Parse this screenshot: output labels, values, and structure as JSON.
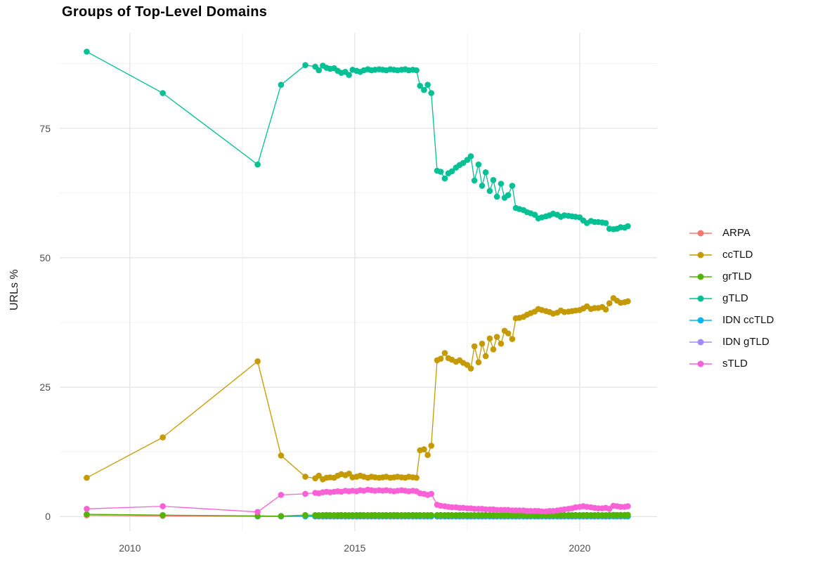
{
  "chart_data": {
    "type": "line",
    "title": "Groups of Top-Level Domains",
    "xlabel": "",
    "ylabel": "URLs %",
    "legend_position": "right",
    "grid": true,
    "background_color": "#FFFFFF",
    "grid_major_color": "#E3E3E3",
    "grid_minor_color": "#F0F0F0",
    "tick_label_color": "#4D4D4D",
    "xlim": [
      2008.44,
      2021.72
    ],
    "ylim": [
      -2.8,
      93.4
    ],
    "x_ticks": [
      2010,
      2015,
      2020
    ],
    "x_tick_labels": [
      "2010",
      "2015",
      "2020"
    ],
    "x_minor": [
      2012.5,
      2017.5
    ],
    "y_ticks": [
      0,
      25,
      50,
      75
    ],
    "y_tick_labels": [
      "0",
      "25",
      "50",
      "75"
    ],
    "y_minor": [
      12.5,
      37.5,
      62.5,
      87.5
    ],
    "x": [
      2009.04,
      2010.73,
      2012.84,
      2013.36,
      2013.9,
      2014.12,
      2014.2,
      2014.29,
      2014.37,
      2014.45,
      2014.54,
      2014.62,
      2014.7,
      2014.79,
      2014.87,
      2014.95,
      2015.04,
      2015.12,
      2015.2,
      2015.29,
      2015.37,
      2015.45,
      2015.54,
      2015.62,
      2015.7,
      2015.79,
      2015.87,
      2015.95,
      2016.04,
      2016.12,
      2016.2,
      2016.29,
      2016.37,
      2016.45,
      2016.54,
      2016.62,
      2016.7,
      2016.83,
      2016.91,
      2017.0,
      2017.08,
      2017.16,
      2017.25,
      2017.33,
      2017.41,
      2017.5,
      2017.58,
      2017.66,
      2017.75,
      2017.83,
      2017.91,
      2018.0,
      2018.08,
      2018.16,
      2018.25,
      2018.33,
      2018.41,
      2018.5,
      2018.58,
      2018.66,
      2018.75,
      2018.83,
      2018.91,
      2019.0,
      2019.08,
      2019.16,
      2019.25,
      2019.33,
      2019.41,
      2019.5,
      2019.58,
      2019.66,
      2019.75,
      2019.83,
      2019.91,
      2020.0,
      2020.08,
      2020.16,
      2020.25,
      2020.33,
      2020.41,
      2020.5,
      2020.58,
      2020.66,
      2020.75,
      2020.83,
      2020.91,
      2021.0,
      2021.07
    ],
    "series": [
      {
        "name": "ARPA",
        "color": "#F8766D",
        "values": [
          0.25,
          0.15,
          0.05,
          0.04,
          0.03,
          0.02,
          0.02,
          0.02,
          0.02,
          0.02,
          0.02,
          0.02,
          0.02,
          0.02,
          0.02,
          0.02,
          0.02,
          0.02,
          0.02,
          0.02,
          0.02,
          0.02,
          0.02,
          0.02,
          0.02,
          0.02,
          0.02,
          0.02,
          0.02,
          0.02,
          0.02,
          0.02,
          0.02,
          0.02,
          0.02,
          0.02,
          0.02,
          0.02,
          0.02,
          0.02,
          0.02,
          0.02,
          0.02,
          0.02,
          0.02,
          0.02,
          0.02,
          0.02,
          0.02,
          0.02,
          0.02,
          0.02,
          0.02,
          0.02,
          0.02,
          0.02,
          0.02,
          0.02,
          0.02,
          0.02,
          0.02,
          0.02,
          0.02,
          0.02,
          0.02,
          0.02,
          0.02,
          0.02,
          0.02,
          0.02,
          0.02,
          0.02,
          0.02,
          0.02,
          0.02,
          0.02,
          0.02,
          0.02,
          0.02,
          0.02,
          0.02,
          0.02,
          0.02,
          0.02,
          0.02,
          0.02,
          0.02,
          0.02,
          0.02
        ]
      },
      {
        "name": "ccTLD",
        "color": "#C49A00",
        "values": [
          7.5,
          15.3,
          30.0,
          11.8,
          7.7,
          7.4,
          7.9,
          7.2,
          7.5,
          7.6,
          7.5,
          7.9,
          8.2,
          8.0,
          8.3,
          7.6,
          7.7,
          7.9,
          7.7,
          7.5,
          7.7,
          7.6,
          7.5,
          7.6,
          7.7,
          7.5,
          7.6,
          7.7,
          7.6,
          7.5,
          7.7,
          7.6,
          7.5,
          12.8,
          13.0,
          11.9,
          13.7,
          30.2,
          30.5,
          31.6,
          30.6,
          30.3,
          29.9,
          30.2,
          29.7,
          29.3,
          28.6,
          32.9,
          29.8,
          33.4,
          31.0,
          34.4,
          32.3,
          34.7,
          33.4,
          35.9,
          35.4,
          34.3,
          38.3,
          38.4,
          38.6,
          39.0,
          39.3,
          39.6,
          40.1,
          39.9,
          39.7,
          39.5,
          39.2,
          39.4,
          39.8,
          39.5,
          39.6,
          39.7,
          39.8,
          39.9,
          40.2,
          40.6,
          40.1,
          40.3,
          40.3,
          40.5,
          40.0,
          41.2,
          42.2,
          41.7,
          41.3,
          41.4,
          41.6
        ]
      },
      {
        "name": "grTLD",
        "color": "#53B400",
        "values": [
          0.45,
          0.3,
          0.15,
          0.12,
          0.3,
          0.3,
          0.28,
          0.3,
          0.32,
          0.3,
          0.29,
          0.3,
          0.31,
          0.3,
          0.28,
          0.3,
          0.3,
          0.31,
          0.29,
          0.3,
          0.3,
          0.31,
          0.3,
          0.29,
          0.3,
          0.3,
          0.31,
          0.3,
          0.3,
          0.29,
          0.3,
          0.31,
          0.3,
          0.3,
          0.29,
          0.3,
          0.3,
          0.3,
          0.31,
          0.3,
          0.3,
          0.29,
          0.3,
          0.3,
          0.31,
          0.3,
          0.3,
          0.29,
          0.3,
          0.3,
          0.31,
          0.3,
          0.3,
          0.3,
          0.31,
          0.3,
          0.29,
          0.3,
          0.3,
          0.31,
          0.3,
          0.3,
          0.3,
          0.3,
          0.31,
          0.3,
          0.3,
          0.29,
          0.3,
          0.3,
          0.31,
          0.3,
          0.3,
          0.3,
          0.31,
          0.3,
          0.3,
          0.31,
          0.3,
          0.3,
          0.31,
          0.3,
          0.3,
          0.32,
          0.33,
          0.32,
          0.33,
          0.34,
          0.35
        ]
      },
      {
        "name": "gTLD",
        "color": "#00C094",
        "values": [
          89.8,
          81.8,
          68.0,
          83.4,
          87.2,
          86.9,
          86.2,
          87.1,
          86.7,
          86.5,
          86.6,
          86.1,
          85.7,
          85.9,
          85.3,
          86.3,
          86.1,
          85.9,
          86.2,
          86.4,
          86.2,
          86.3,
          86.4,
          86.3,
          86.2,
          86.4,
          86.3,
          86.2,
          86.3,
          86.4,
          86.2,
          86.3,
          86.2,
          83.2,
          82.4,
          83.4,
          81.8,
          66.8,
          66.6,
          65.3,
          66.3,
          66.7,
          67.4,
          67.9,
          68.3,
          68.9,
          69.6,
          64.9,
          68.0,
          63.9,
          66.5,
          62.9,
          65.0,
          61.8,
          64.3,
          61.6,
          62.1,
          63.9,
          59.6,
          59.4,
          59.2,
          58.8,
          58.6,
          58.3,
          57.6,
          57.8,
          58.0,
          58.2,
          58.5,
          58.3,
          57.9,
          58.2,
          58.1,
          58.0,
          57.9,
          57.8,
          57.2,
          56.7,
          57.1,
          56.9,
          56.9,
          56.8,
          56.7,
          55.6,
          55.5,
          55.6,
          55.9,
          55.8,
          56.1
        ]
      },
      {
        "name": "IDN ccTLD",
        "color": "#00B6EB",
        "values": [
          null,
          null,
          0.05,
          0.06,
          0.08,
          0.1,
          0.1,
          0.1,
          0.1,
          0.1,
          0.1,
          0.1,
          0.1,
          0.1,
          0.1,
          0.1,
          0.1,
          0.1,
          0.1,
          0.1,
          0.1,
          0.1,
          0.1,
          0.1,
          0.1,
          0.1,
          0.1,
          0.1,
          0.1,
          0.1,
          0.1,
          0.1,
          0.1,
          0.1,
          0.1,
          0.1,
          0.1,
          0.1,
          0.1,
          0.1,
          0.1,
          0.1,
          0.1,
          0.1,
          0.1,
          0.1,
          0.1,
          0.1,
          0.1,
          0.1,
          0.1,
          0.1,
          0.1,
          0.1,
          0.1,
          0.1,
          0.1,
          0.1,
          0.1,
          0.1,
          0.1,
          0.1,
          0.1,
          0.1,
          0.1,
          0.1,
          0.1,
          0.1,
          0.1,
          0.1,
          0.1,
          0.1,
          0.1,
          0.1,
          0.1,
          0.1,
          0.1,
          0.1,
          0.1,
          0.1,
          0.1,
          0.1,
          0.1,
          0.1,
          0.1,
          0.1,
          0.1,
          0.1,
          0.1
        ]
      },
      {
        "name": "IDN gTLD",
        "color": "#A58AFF",
        "values": [
          null,
          null,
          null,
          null,
          null,
          null,
          null,
          null,
          null,
          null,
          null,
          null,
          null,
          null,
          null,
          null,
          null,
          null,
          null,
          null,
          null,
          null,
          null,
          null,
          null,
          null,
          null,
          null,
          null,
          null,
          null,
          null,
          null,
          0.05,
          0.05,
          0.05,
          0.05,
          0.05,
          0.05,
          0.05,
          0.05,
          0.05,
          0.05,
          0.05,
          0.05,
          0.05,
          0.05,
          0.05,
          0.05,
          0.05,
          0.05,
          0.05,
          0.05,
          0.05,
          0.05,
          0.05,
          0.05,
          0.05,
          0.05,
          0.05,
          0.05,
          0.05,
          0.05,
          0.05,
          0.05,
          0.05,
          0.05,
          0.05,
          0.05,
          0.05,
          0.05,
          0.05,
          0.05,
          0.05,
          0.05,
          0.05,
          0.05,
          0.05,
          0.05,
          0.05,
          0.05,
          0.05,
          0.05,
          0.05,
          0.05,
          0.05,
          0.05,
          0.05,
          0.05
        ]
      },
      {
        "name": "sTLD",
        "color": "#FB61D7",
        "values": [
          1.5,
          2.0,
          0.9,
          4.2,
          4.4,
          4.6,
          4.5,
          4.7,
          4.8,
          4.7,
          4.8,
          4.9,
          4.8,
          5.0,
          4.9,
          5.0,
          4.9,
          5.1,
          5.0,
          5.2,
          5.1,
          5.0,
          5.1,
          5.0,
          5.1,
          5.0,
          4.9,
          5.0,
          5.1,
          5.0,
          4.9,
          5.0,
          4.9,
          4.5,
          4.4,
          4.2,
          4.4,
          2.3,
          2.1,
          2.0,
          1.9,
          1.8,
          1.8,
          1.7,
          1.7,
          1.6,
          1.6,
          1.5,
          1.5,
          1.5,
          1.4,
          1.4,
          1.4,
          1.3,
          1.3,
          1.3,
          1.3,
          1.2,
          1.2,
          1.2,
          1.2,
          1.1,
          1.1,
          1.1,
          1.1,
          1.0,
          1.0,
          1.1,
          1.1,
          1.2,
          1.3,
          1.4,
          1.5,
          1.6,
          1.8,
          1.9,
          2.0,
          1.9,
          1.8,
          1.7,
          1.6,
          1.6,
          1.7,
          1.5,
          2.1,
          2.0,
          1.9,
          1.9,
          2.0
        ]
      }
    ],
    "draw_order": [
      "ARPA",
      "IDN gTLD",
      "IDN ccTLD",
      "grTLD",
      "ccTLD",
      "gTLD",
      "sTLD"
    ]
  }
}
